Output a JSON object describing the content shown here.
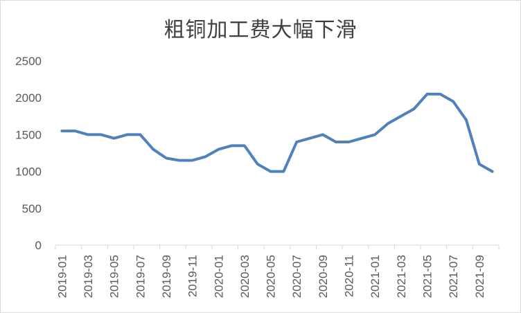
{
  "chart_data": {
    "type": "line",
    "title": "粗铜加工费大幅下滑",
    "xlabel": "",
    "ylabel": "",
    "ylim": [
      0,
      2500
    ],
    "yticks": [
      0,
      500,
      1000,
      1500,
      2000,
      2500
    ],
    "grid": false,
    "legend": "none",
    "line_color": "#4f81bd",
    "x": [
      "2019-01",
      "2019-02",
      "2019-03",
      "2019-04",
      "2019-05",
      "2019-06",
      "2019-07",
      "2019-08",
      "2019-09",
      "2019-10",
      "2019-11",
      "2019-12",
      "2020-01",
      "2020-02",
      "2020-03",
      "2020-04",
      "2020-05",
      "2020-06",
      "2020-07",
      "2020-08",
      "2020-09",
      "2020-10",
      "2020-11",
      "2020-12",
      "2021-01",
      "2021-02",
      "2021-03",
      "2021-04",
      "2021-05",
      "2021-06",
      "2021-07",
      "2021-08",
      "2021-09",
      "2021-10"
    ],
    "xtick_labels": [
      "2019-01",
      "2019-03",
      "2019-05",
      "2019-07",
      "2019-09",
      "2019-11",
      "2020-01",
      "2020-03",
      "2020-05",
      "2020-07",
      "2020-09",
      "2020-11",
      "2021-01",
      "2021-03",
      "2021-05",
      "2021-07",
      "2021-09"
    ],
    "values": [
      1550,
      1550,
      1500,
      1500,
      1450,
      1500,
      1500,
      1300,
      1180,
      1150,
      1150,
      1200,
      1300,
      1350,
      1350,
      1100,
      1000,
      1000,
      1400,
      1450,
      1500,
      1400,
      1400,
      1450,
      1500,
      1650,
      1750,
      1850,
      2050,
      2050,
      1950,
      1700,
      1100,
      1000
    ]
  }
}
